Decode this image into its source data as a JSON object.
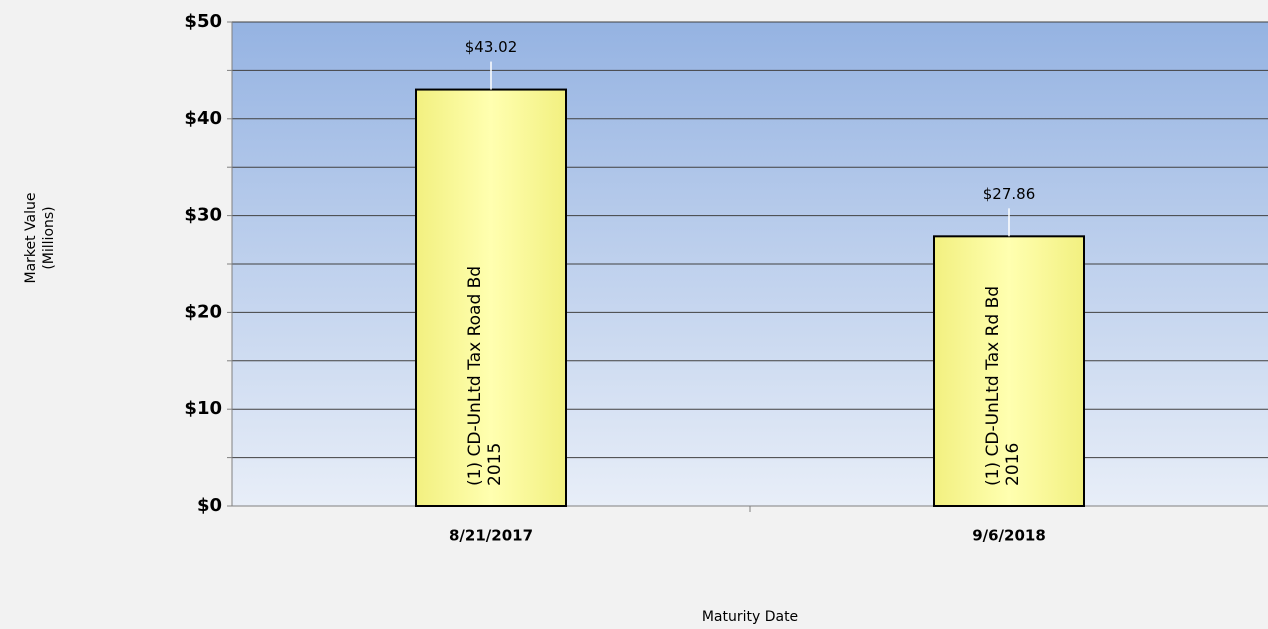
{
  "chart_data": {
    "type": "bar",
    "ylabel": [
      "Market Value",
      "(Millions)"
    ],
    "xlabel": "Maturity Date",
    "categories": [
      "8/21/2017",
      "9/6/2018"
    ],
    "values": [
      43.02,
      27.86
    ],
    "value_labels": [
      "$43.02",
      "$27.86"
    ],
    "bar_labels": [
      [
        "(1) CD-UnLtd Tax Road Bd",
        "2015"
      ],
      [
        "(1) CD-UnLtd Tax Rd Bd",
        "2016"
      ]
    ],
    "color": "#ffff99",
    "ylim": [
      0,
      50
    ],
    "yticks": [
      {
        "value": 0,
        "label": "$0"
      },
      {
        "value": 10,
        "label": "$10"
      },
      {
        "value": 20,
        "label": "$20"
      },
      {
        "value": 30,
        "label": "$30"
      },
      {
        "value": 40,
        "label": "$40"
      },
      {
        "value": 50,
        "label": "$50"
      }
    ],
    "minor_yticks": [
      5,
      15,
      25,
      35,
      45
    ],
    "grid": true
  }
}
